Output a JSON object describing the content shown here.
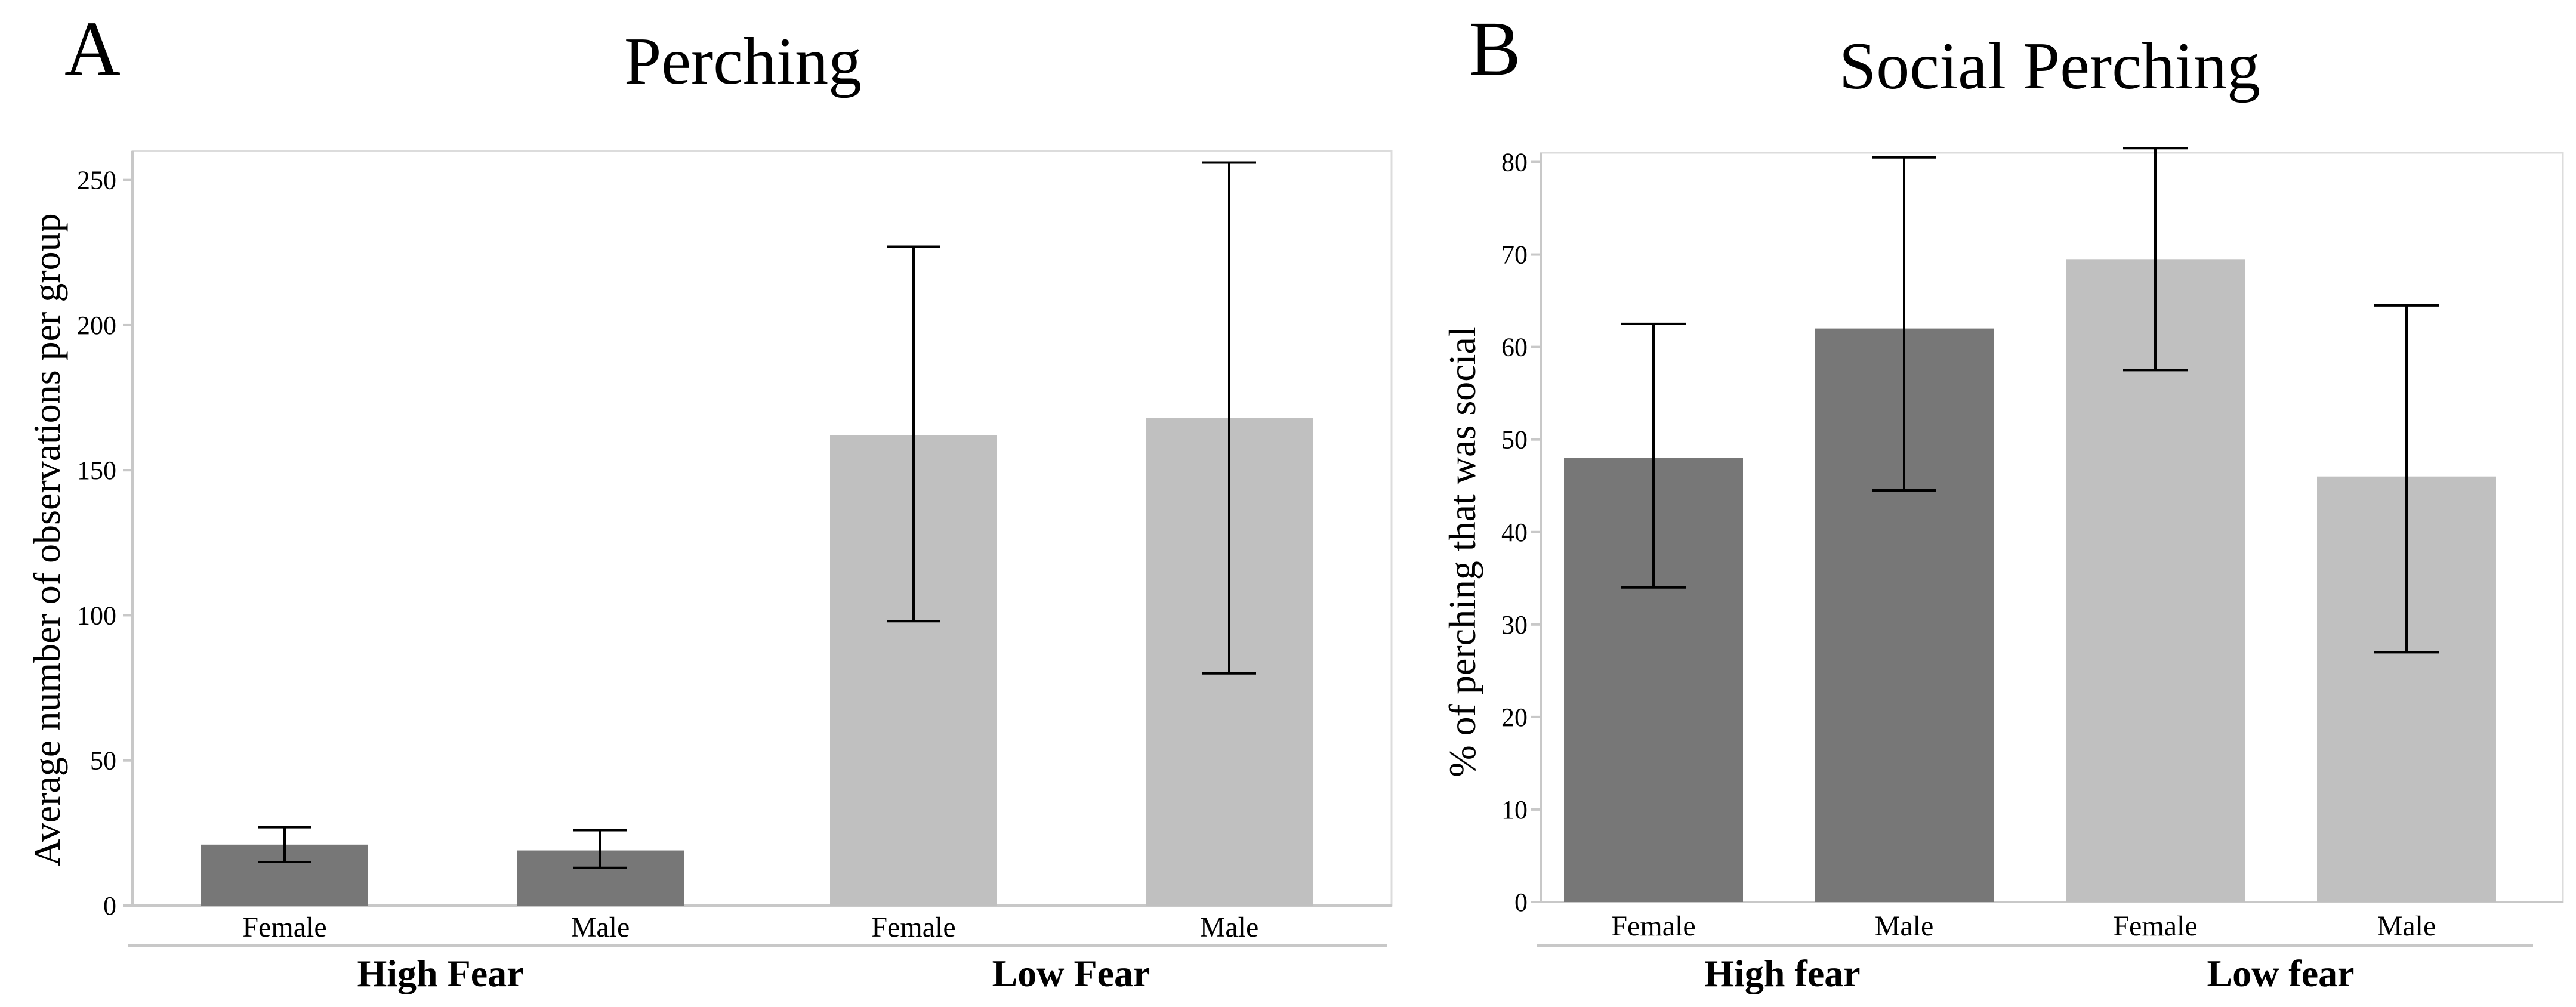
{
  "colors": {
    "high_fear": "#777777",
    "low_fear": "#c0c0c0",
    "axis": "#c8c8c8",
    "error_bar": "#000000"
  },
  "chart_data": [
    {
      "type": "bar",
      "panel_letter": "A",
      "title": "Perching",
      "xlabel": "",
      "ylabel": "Average number of observations per group",
      "ylim": [
        0,
        260
      ],
      "yticks": [
        0,
        50,
        100,
        150,
        200,
        250
      ],
      "categories": [
        "Female",
        "Male",
        "Female",
        "Male"
      ],
      "groups": [
        {
          "label": "High Fear",
          "category_indices": [
            0,
            1
          ],
          "color": "#777777"
        },
        {
          "label": "Low Fear",
          "category_indices": [
            2,
            3
          ],
          "color": "#c0c0c0"
        }
      ],
      "values": [
        21,
        19,
        162,
        168
      ],
      "error_low": [
        15,
        13,
        98,
        80
      ],
      "error_high": [
        27,
        26,
        227,
        256
      ]
    },
    {
      "type": "bar",
      "panel_letter": "B",
      "title": "Social Perching",
      "xlabel": "",
      "ylabel": "% of perching that was social",
      "ylim": [
        0,
        81
      ],
      "yticks": [
        0,
        10,
        20,
        30,
        40,
        50,
        60,
        70,
        80
      ],
      "categories": [
        "Female",
        "Male",
        "Female",
        "Male"
      ],
      "groups": [
        {
          "label": "High fear",
          "category_indices": [
            0,
            1
          ],
          "color": "#777777"
        },
        {
          "label": "Low fear",
          "category_indices": [
            2,
            3
          ],
          "color": "#c0c0c0"
        }
      ],
      "values": [
        48,
        62,
        69.5,
        46
      ],
      "error_low": [
        34,
        44.5,
        57.5,
        27
      ],
      "error_high": [
        62.5,
        80.5,
        81.5,
        64.5
      ]
    }
  ]
}
